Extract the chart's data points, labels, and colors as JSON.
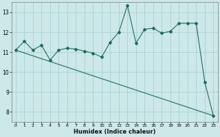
{
  "xlabel": "Humidex (Indice chaleur)",
  "background_color": "#cce8e8",
  "line_color": "#1a6b5a",
  "grid_color": "#aad0d0",
  "x_data": [
    0,
    1,
    2,
    3,
    4,
    5,
    6,
    7,
    8,
    9,
    10,
    11,
    12,
    13,
    14,
    15,
    16,
    17,
    18,
    19,
    20,
    21,
    22,
    23
  ],
  "y_jagged": [
    11.1,
    11.55,
    11.1,
    11.35,
    10.6,
    11.1,
    11.2,
    11.15,
    11.05,
    10.95,
    10.75,
    11.5,
    12.0,
    13.35,
    11.45,
    12.15,
    12.2,
    11.95,
    12.05,
    12.45,
    12.45,
    12.45,
    9.5,
    7.8
  ],
  "xlim": [
    -0.5,
    23.5
  ],
  "ylim": [
    7.5,
    13.5
  ],
  "yticks": [
    8,
    9,
    10,
    11,
    12,
    13
  ],
  "xticks": [
    0,
    1,
    2,
    3,
    4,
    5,
    6,
    7,
    8,
    9,
    10,
    11,
    12,
    13,
    14,
    15,
    16,
    17,
    18,
    19,
    20,
    21,
    22,
    23
  ],
  "figsize": [
    3.2,
    2.0
  ],
  "dpi": 100
}
